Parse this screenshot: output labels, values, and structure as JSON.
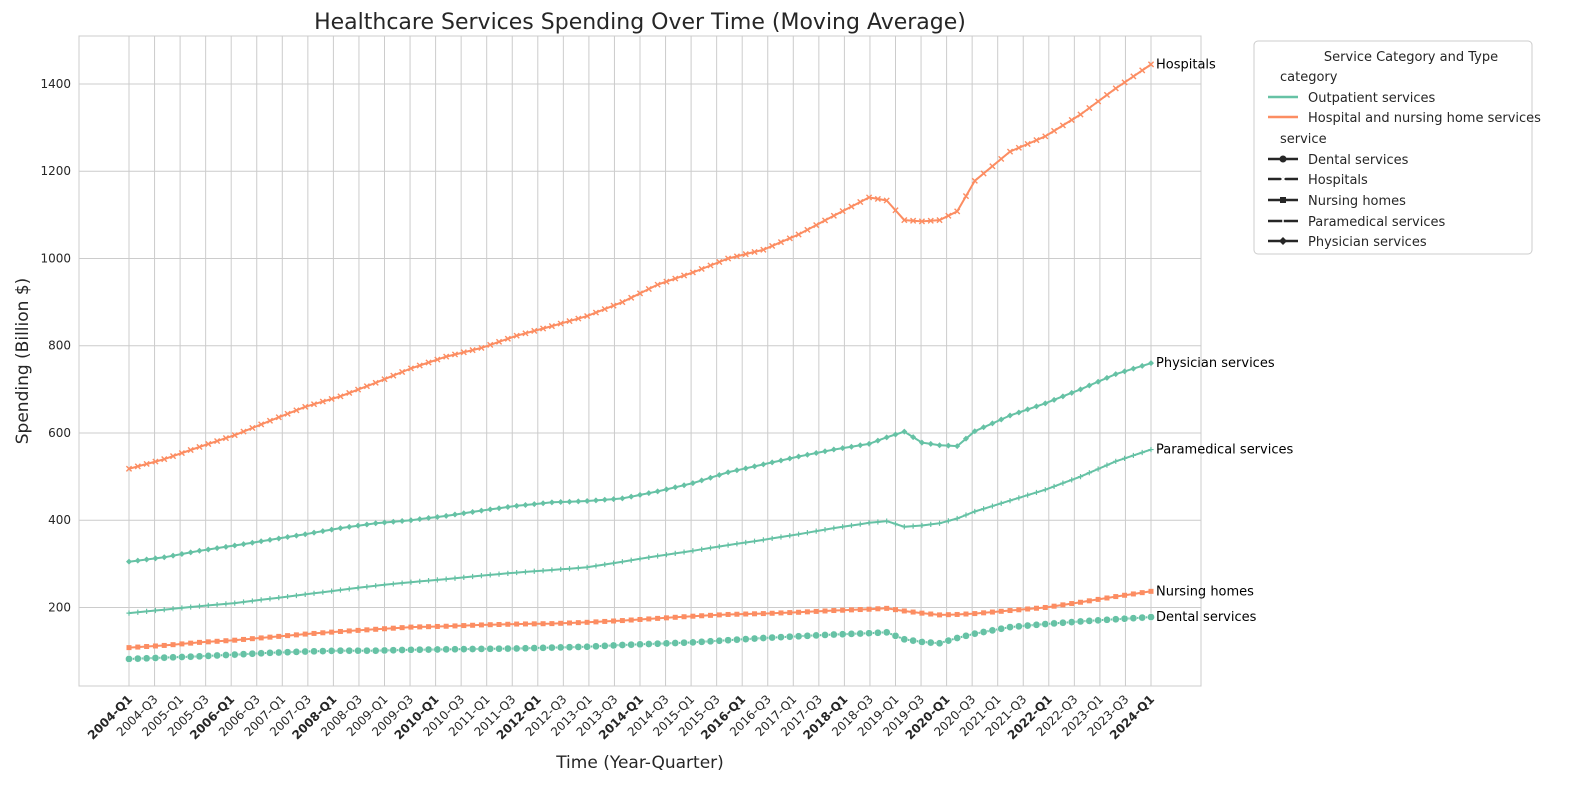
{
  "chart_data": {
    "type": "line",
    "title": "Healthcare Services Spending Over Time (Moving Average)",
    "xlabel": "Time (Year-Quarter)",
    "ylabel": "Spending (Billion $)",
    "ylim": [
      20,
      1510
    ],
    "yticks": [
      200,
      400,
      600,
      800,
      1000,
      1200,
      1400
    ],
    "grid": true,
    "legend_position": "outside-top-right",
    "x_tick_labels": [
      "2004-Q1",
      "2004-Q3",
      "2005-Q1",
      "2005-Q3",
      "2006-Q1",
      "2006-Q3",
      "2007-Q1",
      "2007-Q3",
      "2008-Q1",
      "2008-Q3",
      "2009-Q1",
      "2009-Q3",
      "2010-Q1",
      "2010-Q3",
      "2011-Q1",
      "2011-Q3",
      "2012-Q1",
      "2012-Q3",
      "2013-Q1",
      "2013-Q3",
      "2014-Q1",
      "2014-Q3",
      "2015-Q1",
      "2015-Q3",
      "2016-Q1",
      "2016-Q3",
      "2017-Q1",
      "2017-Q3",
      "2018-Q1",
      "2018-Q3",
      "2019-Q1",
      "2019-Q3",
      "2020-Q1",
      "2020-Q3",
      "2021-Q1",
      "2021-Q3",
      "2022-Q1",
      "2022-Q3",
      "2023-Q1",
      "2023-Q3",
      "2024-Q1"
    ],
    "bold_tick_labels": [
      "2004-Q1",
      "2006-Q1",
      "2008-Q1",
      "2010-Q1",
      "2012-Q1",
      "2014-Q1",
      "2016-Q1",
      "2018-Q1",
      "2020-Q1",
      "2022-Q1",
      "2024-Q1"
    ],
    "legend": {
      "title": "Service Category and Type",
      "category_header": "category",
      "categories": [
        {
          "name": "Outpatient services",
          "color": "#66c2a5"
        },
        {
          "name": "Hospital and nursing home services",
          "color": "#fc8d62"
        }
      ],
      "service_header": "service",
      "services": [
        {
          "name": "Dental services",
          "marker": "circle"
        },
        {
          "name": "Hospitals",
          "marker": "x"
        },
        {
          "name": "Nursing homes",
          "marker": "square"
        },
        {
          "name": "Paramedical services",
          "marker": "plus"
        },
        {
          "name": "Physician services",
          "marker": "diamond"
        }
      ]
    },
    "series": [
      {
        "name": "Hospitals",
        "category": "Hospital and nursing home services",
        "color": "#fc8d62",
        "marker": "x",
        "end_label": "Hospitals",
        "keypoints": [
          [
            0,
            518
          ],
          [
            4,
            540
          ],
          [
            8,
            568
          ],
          [
            12,
            595
          ],
          [
            16,
            628
          ],
          [
            20,
            660
          ],
          [
            24,
            684
          ],
          [
            28,
            715
          ],
          [
            32,
            748
          ],
          [
            36,
            775
          ],
          [
            40,
            795
          ],
          [
            44,
            823
          ],
          [
            48,
            845
          ],
          [
            52,
            868
          ],
          [
            56,
            900
          ],
          [
            60,
            940
          ],
          [
            64,
            968
          ],
          [
            68,
            1000
          ],
          [
            72,
            1020
          ],
          [
            76,
            1055
          ],
          [
            80,
            1098
          ],
          [
            84,
            1140
          ],
          [
            86,
            1133
          ],
          [
            88,
            1088
          ],
          [
            90,
            1085
          ],
          [
            92,
            1088
          ],
          [
            94,
            1108
          ],
          [
            96,
            1178
          ],
          [
            100,
            1245
          ],
          [
            104,
            1280
          ],
          [
            108,
            1330
          ],
          [
            112,
            1390
          ],
          [
            116,
            1445
          ]
        ]
      },
      {
        "name": "Physician services",
        "category": "Outpatient services",
        "color": "#66c2a5",
        "marker": "diamond",
        "end_label": "Physician services",
        "keypoints": [
          [
            0,
            305
          ],
          [
            4,
            315
          ],
          [
            8,
            330
          ],
          [
            12,
            342
          ],
          [
            16,
            355
          ],
          [
            20,
            368
          ],
          [
            24,
            382
          ],
          [
            28,
            393
          ],
          [
            32,
            400
          ],
          [
            36,
            410
          ],
          [
            40,
            422
          ],
          [
            44,
            433
          ],
          [
            48,
            441
          ],
          [
            52,
            444
          ],
          [
            56,
            450
          ],
          [
            60,
            466
          ],
          [
            64,
            485
          ],
          [
            68,
            510
          ],
          [
            72,
            528
          ],
          [
            76,
            546
          ],
          [
            80,
            562
          ],
          [
            84,
            575
          ],
          [
            86,
            590
          ],
          [
            88,
            603
          ],
          [
            90,
            578
          ],
          [
            92,
            572
          ],
          [
            94,
            570
          ],
          [
            96,
            604
          ],
          [
            100,
            640
          ],
          [
            104,
            668
          ],
          [
            108,
            700
          ],
          [
            112,
            735
          ],
          [
            116,
            760
          ]
        ]
      },
      {
        "name": "Paramedical services",
        "category": "Outpatient services",
        "color": "#66c2a5",
        "marker": "plus",
        "end_label": "Paramedical services",
        "keypoints": [
          [
            0,
            187
          ],
          [
            4,
            195
          ],
          [
            8,
            203
          ],
          [
            12,
            210
          ],
          [
            16,
            220
          ],
          [
            20,
            230
          ],
          [
            24,
            240
          ],
          [
            28,
            250
          ],
          [
            32,
            258
          ],
          [
            36,
            265
          ],
          [
            40,
            273
          ],
          [
            44,
            280
          ],
          [
            48,
            286
          ],
          [
            52,
            292
          ],
          [
            56,
            305
          ],
          [
            60,
            318
          ],
          [
            64,
            330
          ],
          [
            68,
            343
          ],
          [
            72,
            355
          ],
          [
            76,
            368
          ],
          [
            80,
            382
          ],
          [
            84,
            394
          ],
          [
            86,
            398
          ],
          [
            88,
            385
          ],
          [
            90,
            388
          ],
          [
            92,
            393
          ],
          [
            94,
            404
          ],
          [
            96,
            420
          ],
          [
            100,
            445
          ],
          [
            104,
            470
          ],
          [
            108,
            500
          ],
          [
            112,
            535
          ],
          [
            116,
            562
          ]
        ]
      },
      {
        "name": "Nursing homes",
        "category": "Hospital and nursing home services",
        "color": "#fc8d62",
        "marker": "square",
        "end_label": "Nursing homes",
        "keypoints": [
          [
            0,
            108
          ],
          [
            4,
            113
          ],
          [
            8,
            120
          ],
          [
            12,
            125
          ],
          [
            16,
            132
          ],
          [
            20,
            139
          ],
          [
            24,
            145
          ],
          [
            28,
            150
          ],
          [
            32,
            155
          ],
          [
            36,
            157
          ],
          [
            40,
            160
          ],
          [
            44,
            162
          ],
          [
            48,
            163
          ],
          [
            52,
            166
          ],
          [
            56,
            170
          ],
          [
            60,
            175
          ],
          [
            64,
            180
          ],
          [
            68,
            184
          ],
          [
            72,
            186
          ],
          [
            76,
            189
          ],
          [
            80,
            193
          ],
          [
            84,
            196
          ],
          [
            86,
            198
          ],
          [
            88,
            192
          ],
          [
            90,
            187
          ],
          [
            92,
            183
          ],
          [
            94,
            184
          ],
          [
            96,
            186
          ],
          [
            100,
            193
          ],
          [
            104,
            200
          ],
          [
            108,
            212
          ],
          [
            112,
            225
          ],
          [
            116,
            237
          ]
        ]
      },
      {
        "name": "Dental services",
        "category": "Outpatient services",
        "color": "#66c2a5",
        "marker": "circle",
        "end_label": "Dental services",
        "keypoints": [
          [
            0,
            82
          ],
          [
            4,
            85
          ],
          [
            8,
            88
          ],
          [
            12,
            92
          ],
          [
            16,
            96
          ],
          [
            20,
            99
          ],
          [
            24,
            101
          ],
          [
            28,
            101
          ],
          [
            32,
            103
          ],
          [
            36,
            104
          ],
          [
            40,
            105
          ],
          [
            44,
            106
          ],
          [
            48,
            108
          ],
          [
            52,
            110
          ],
          [
            56,
            114
          ],
          [
            60,
            117
          ],
          [
            64,
            120
          ],
          [
            68,
            125
          ],
          [
            72,
            130
          ],
          [
            76,
            134
          ],
          [
            80,
            138
          ],
          [
            84,
            141
          ],
          [
            86,
            143
          ],
          [
            88,
            127
          ],
          [
            90,
            121
          ],
          [
            92,
            118
          ],
          [
            94,
            130
          ],
          [
            96,
            140
          ],
          [
            100,
            155
          ],
          [
            104,
            162
          ],
          [
            108,
            168
          ],
          [
            112,
            173
          ],
          [
            116,
            178
          ]
        ]
      }
    ]
  }
}
